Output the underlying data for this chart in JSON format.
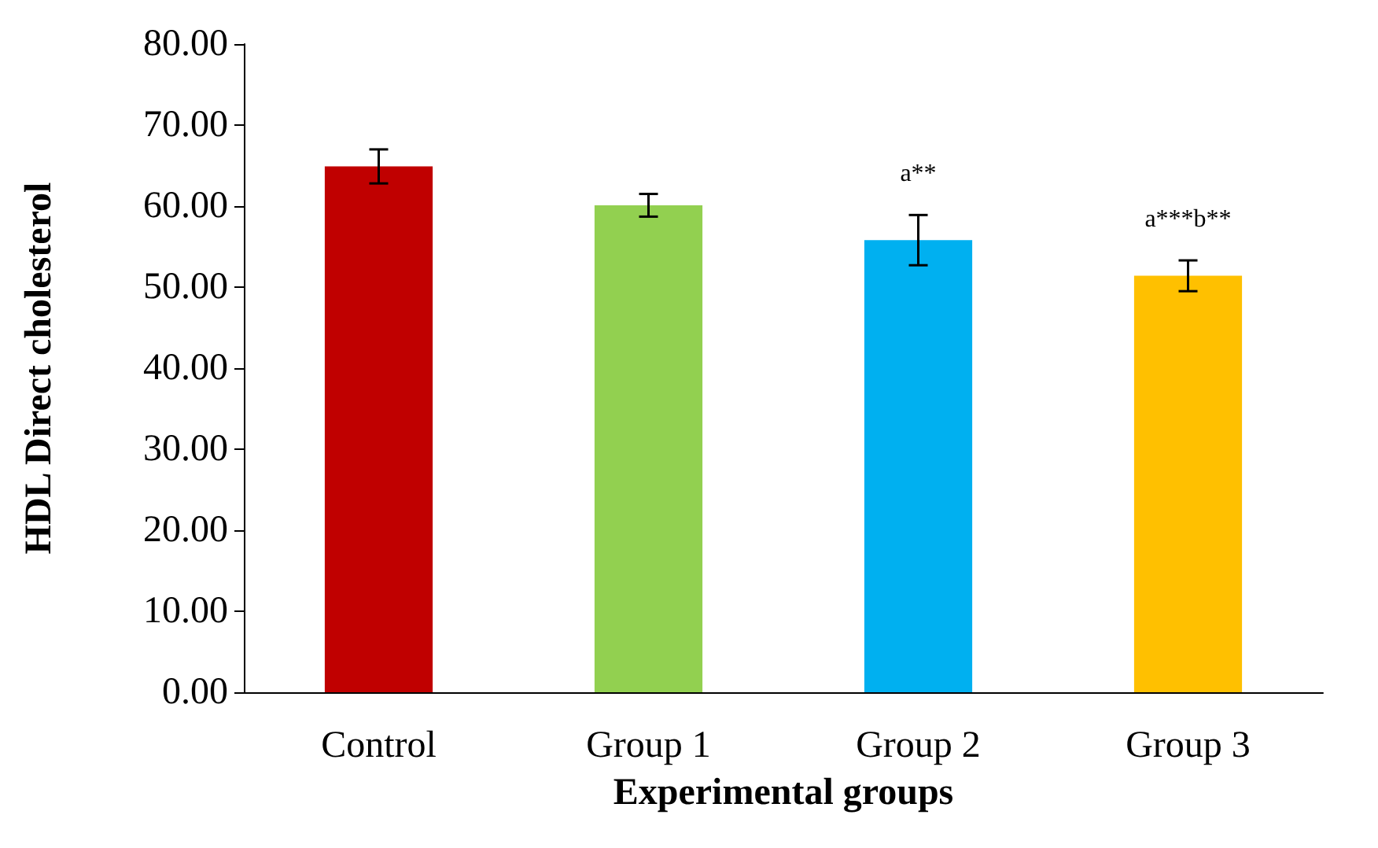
{
  "chart_data": {
    "type": "bar",
    "xlabel": "Experimental groups",
    "ylabel": "HDL Direct cholesterol",
    "categories": [
      "Control",
      "Group 1",
      "Group 2",
      "Group 3"
    ],
    "values": [
      64.9,
      60.1,
      55.8,
      51.4
    ],
    "colors": [
      "#c00000",
      "#92d050",
      "#00b0f0",
      "#ffc000"
    ],
    "errors": [
      2.1,
      1.4,
      3.1,
      1.9
    ],
    "ylim": [
      0,
      80
    ],
    "yticks": [
      {
        "value": 0,
        "label": "0.00"
      },
      {
        "value": 10,
        "label": "10.00"
      },
      {
        "value": 20,
        "label": "20.00"
      },
      {
        "value": 30,
        "label": "30.00"
      },
      {
        "value": 40,
        "label": "40.00"
      },
      {
        "value": 50,
        "label": "50.00"
      },
      {
        "value": 60,
        "label": "60.00"
      },
      {
        "value": 70,
        "label": "70.00"
      },
      {
        "value": 80,
        "label": "80.00"
      }
    ],
    "value_labels": [
      null,
      null,
      "a**",
      "a***b**"
    ],
    "grid": false
  }
}
